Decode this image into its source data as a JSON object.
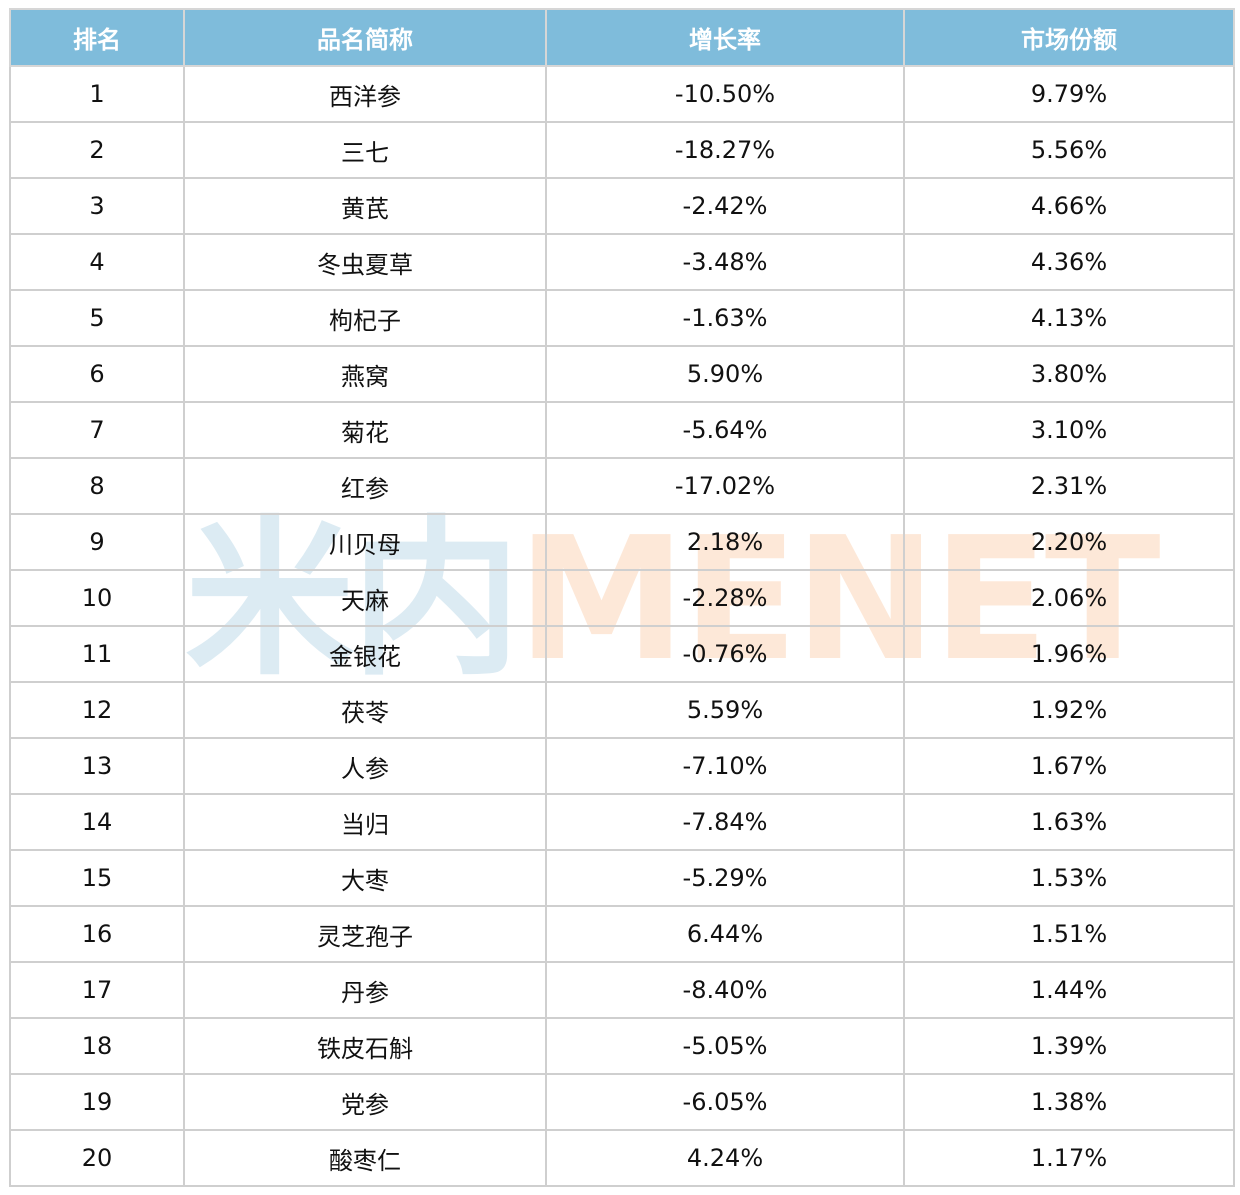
{
  "colors": {
    "header_bg": "#7fbcdb",
    "header_text": "#ffffff",
    "grid": "#cfcfcf"
  },
  "watermark": {
    "left": "米内",
    "right": "MENET"
  },
  "chart_data": {
    "type": "table",
    "columns": [
      "排名",
      "品名简称",
      "增长率",
      "市场份额"
    ],
    "rows": [
      [
        "1",
        "西洋参",
        "-10.50%",
        "9.79%"
      ],
      [
        "2",
        "三七",
        "-18.27%",
        "5.56%"
      ],
      [
        "3",
        "黄芪",
        "-2.42%",
        "4.66%"
      ],
      [
        "4",
        "冬虫夏草",
        "-3.48%",
        "4.36%"
      ],
      [
        "5",
        "枸杞子",
        "-1.63%",
        "4.13%"
      ],
      [
        "6",
        "燕窝",
        "5.90%",
        "3.80%"
      ],
      [
        "7",
        "菊花",
        "-5.64%",
        "3.10%"
      ],
      [
        "8",
        "红参",
        "-17.02%",
        "2.31%"
      ],
      [
        "9",
        "川贝母",
        "2.18%",
        "2.20%"
      ],
      [
        "10",
        "天麻",
        "-2.28%",
        "2.06%"
      ],
      [
        "11",
        "金银花",
        "-0.76%",
        "1.96%"
      ],
      [
        "12",
        "茯苓",
        "5.59%",
        "1.92%"
      ],
      [
        "13",
        "人参",
        "-7.10%",
        "1.67%"
      ],
      [
        "14",
        "当归",
        "-7.84%",
        "1.63%"
      ],
      [
        "15",
        "大枣",
        "-5.29%",
        "1.53%"
      ],
      [
        "16",
        "灵芝孢子",
        "6.44%",
        "1.51%"
      ],
      [
        "17",
        "丹参",
        "-8.40%",
        "1.44%"
      ],
      [
        "18",
        "铁皮石斛",
        "-5.05%",
        "1.39%"
      ],
      [
        "19",
        "党参",
        "-6.05%",
        "1.38%"
      ],
      [
        "20",
        "酸枣仁",
        "4.24%",
        "1.17%"
      ]
    ]
  }
}
